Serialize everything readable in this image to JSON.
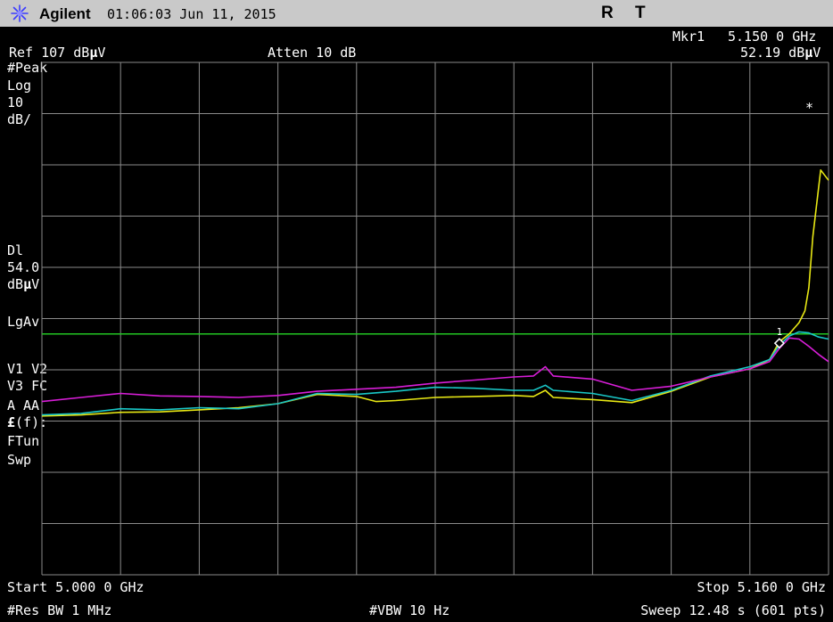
{
  "header": {
    "brand": "Agilent",
    "time": "01:06:03  Jun 11, 2015",
    "flag_r": "R",
    "flag_t": "T"
  },
  "marker": {
    "label": "Mkr1",
    "freq": "5.150 0 GHz",
    "amp_pre": "52.19 dB",
    "amp_mu": "µ",
    "amp_post": "V",
    "symbol": "*",
    "point_label": "1"
  },
  "ref": {
    "pre": "Ref 107 dB",
    "mu": "µ",
    "post": "V"
  },
  "atten": "Atten 10 dB",
  "left_panel": {
    "peak": "#Peak",
    "log": "Log",
    "scale_val": "10",
    "scale_unit": "dB/",
    "dl_label": "Dl",
    "dl_value": "54.0",
    "dl_unit_pre": "dB",
    "dl_unit_mu": "µ",
    "dl_unit_post": "V",
    "lgav": "LgAv",
    "v1v2": "V1  V2",
    "v3fc": "V3  FC",
    "a": "A",
    "aa": "AA",
    "ff_sym": "£",
    "ff_rest": "(f):",
    "ftun": "FTun",
    "swp": "Swp"
  },
  "footer": {
    "start": "Start 5.000 0 GHz",
    "stop": "Stop 5.160 0 GHz",
    "res_bw": "#Res BW 1 MHz",
    "vbw": "#VBW 10 Hz",
    "sweep": "Sweep 12.48 s (601 pts)"
  },
  "colors": {
    "background": "#000000",
    "grid": "#8a8a8a",
    "display_line": "#22c522",
    "trace_yellow": "#e8e814",
    "trace_cyan": "#19c7c7",
    "trace_magenta": "#d81ed8",
    "header_bg": "#c9c9c9"
  },
  "chart_data": {
    "type": "line",
    "x_unit": "GHz",
    "y_unit": "dBµV",
    "xlim": [
      5.0,
      5.16
    ],
    "ylim": [
      7,
      107
    ],
    "grid": true,
    "display_line": 54.0,
    "marker": {
      "x": 5.15,
      "y": 52.19
    },
    "series": [
      {
        "color": "#e8e814",
        "x": [
          5.0,
          5.008,
          5.016,
          5.024,
          5.032,
          5.04,
          5.048,
          5.056,
          5.064,
          5.068,
          5.072,
          5.08,
          5.088,
          5.096,
          5.1,
          5.1024,
          5.104,
          5.112,
          5.12,
          5.128,
          5.136,
          5.144,
          5.148,
          5.15,
          5.152,
          5.154,
          5.1552,
          5.156,
          5.1568,
          5.1584,
          5.16
        ],
        "y": [
          38.0,
          38.2,
          38.7,
          38.8,
          39.2,
          39.6,
          40.4,
          42.2,
          41.8,
          40.8,
          41.0,
          41.6,
          41.8,
          42.0,
          41.8,
          43.0,
          41.6,
          41.2,
          40.6,
          42.8,
          45.6,
          47.2,
          49.0,
          52.5,
          54.0,
          56.2,
          58.5,
          63.0,
          73.0,
          86.0,
          84.0
        ]
      },
      {
        "color": "#19c7c7",
        "x": [
          5.0,
          5.008,
          5.016,
          5.024,
          5.032,
          5.04,
          5.048,
          5.056,
          5.064,
          5.072,
          5.08,
          5.088,
          5.096,
          5.1,
          5.1024,
          5.104,
          5.112,
          5.12,
          5.128,
          5.136,
          5.144,
          5.148,
          5.15,
          5.152,
          5.154,
          5.156,
          5.158,
          5.16
        ],
        "y": [
          38.2,
          38.5,
          39.4,
          39.2,
          39.6,
          39.4,
          40.4,
          42.4,
          42.2,
          42.8,
          43.6,
          43.4,
          43.0,
          43.0,
          44.0,
          43.0,
          42.4,
          41.0,
          43.0,
          45.8,
          47.6,
          49.0,
          51.8,
          53.6,
          54.4,
          54.2,
          53.4,
          53.0
        ]
      },
      {
        "color": "#d81ed8",
        "x": [
          5.0,
          5.008,
          5.016,
          5.024,
          5.032,
          5.04,
          5.048,
          5.056,
          5.064,
          5.072,
          5.08,
          5.088,
          5.096,
          5.1,
          5.1024,
          5.104,
          5.112,
          5.12,
          5.128,
          5.136,
          5.144,
          5.148,
          5.15,
          5.152,
          5.154,
          5.156,
          5.158,
          5.16
        ],
        "y": [
          40.8,
          41.6,
          42.4,
          41.9,
          41.8,
          41.6,
          42.0,
          42.8,
          43.2,
          43.6,
          44.4,
          45.0,
          45.6,
          45.8,
          47.6,
          45.8,
          45.2,
          43.0,
          43.8,
          45.6,
          47.2,
          48.6,
          51.2,
          53.2,
          53.0,
          51.6,
          50.0,
          48.6
        ]
      }
    ]
  }
}
